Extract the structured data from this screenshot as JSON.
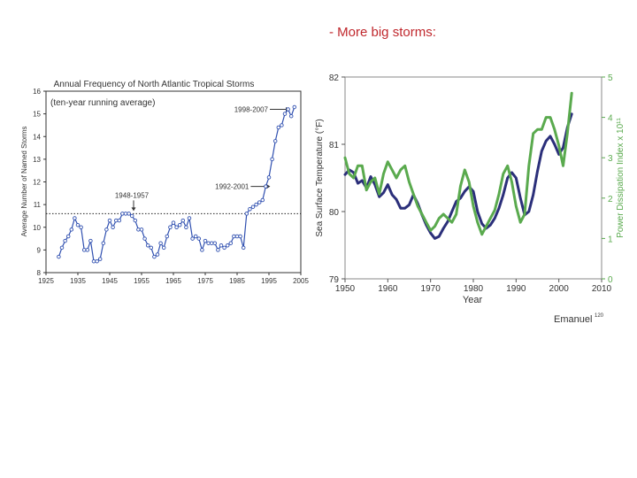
{
  "slide": {
    "title": "- More big storms:"
  },
  "chart_data": [
    {
      "type": "line",
      "title": "Annual Frequency of North Atlantic Tropical Storms",
      "subtitle": "(ten-year running average)",
      "xlabel": "",
      "ylabel": "Average Number of Named Storms",
      "xlim": [
        1925,
        2005
      ],
      "ylim": [
        8,
        16
      ],
      "x_ticks": [
        "1925",
        "1935",
        "1945",
        "1955",
        "1965",
        "1975",
        "1985",
        "1995",
        "2005"
      ],
      "y_ticks": [
        "8",
        "9",
        "10",
        "11",
        "12",
        "13",
        "14",
        "15",
        "16"
      ],
      "reference_line": {
        "y": 10.6,
        "style": "dotted"
      },
      "annotations": [
        {
          "text": "1948-1957",
          "x": 1952.5,
          "y": 10.6
        },
        {
          "text": "1992-2001",
          "x": 1996.5,
          "y": 11.8
        },
        {
          "text": "1998-2007",
          "x": 2002.5,
          "y": 15.2
        }
      ],
      "series": [
        {
          "name": "storms",
          "color": "#3050b0",
          "x": [
            1929,
            1930,
            1931,
            1932,
            1933,
            1934,
            1935,
            1936,
            1937,
            1938,
            1939,
            1940,
            1941,
            1942,
            1943,
            1944,
            1945,
            1946,
            1947,
            1948,
            1949,
            1950,
            1951,
            1952,
            1953,
            1954,
            1955,
            1956,
            1957,
            1958,
            1959,
            1960,
            1961,
            1962,
            1963,
            1964,
            1965,
            1966,
            1967,
            1968,
            1969,
            1970,
            1971,
            1972,
            1973,
            1974,
            1975,
            1976,
            1977,
            1978,
            1979,
            1980,
            1981,
            1982,
            1983,
            1984,
            1985,
            1986,
            1987,
            1988,
            1989,
            1990,
            1991,
            1992,
            1993,
            1994,
            1995,
            1996,
            1997,
            1998,
            1999,
            2000,
            2001,
            2002,
            2003
          ],
          "values": [
            8.7,
            9.1,
            9.4,
            9.6,
            9.9,
            10.4,
            10.1,
            10.0,
            9.0,
            9.0,
            9.4,
            8.5,
            8.5,
            8.6,
            9.3,
            9.9,
            10.3,
            10.0,
            10.3,
            10.3,
            10.6,
            10.6,
            10.6,
            10.5,
            10.3,
            9.9,
            9.9,
            9.5,
            9.2,
            9.1,
            8.7,
            8.8,
            9.3,
            9.1,
            9.6,
            10.0,
            10.2,
            10.0,
            10.1,
            10.3,
            10.0,
            10.4,
            9.5,
            9.6,
            9.5,
            9.0,
            9.4,
            9.3,
            9.3,
            9.3,
            9.0,
            9.2,
            9.1,
            9.2,
            9.3,
            9.6,
            9.6,
            9.6,
            9.1,
            10.6,
            10.8,
            10.9,
            11.0,
            11.1,
            11.2,
            11.8,
            12.2,
            13.0,
            13.8,
            14.4,
            14.5,
            15.0,
            15.2,
            14.9,
            15.3
          ]
        }
      ]
    },
    {
      "type": "line",
      "title": "",
      "xlabel": "Year",
      "ylabel": "Sea Surface Temperature (°F)",
      "ylabel_right": "Power Dissipation Index x 10¹¹",
      "xlim": [
        1950,
        2010
      ],
      "ylim": [
        79,
        82
      ],
      "ylim_right": [
        0,
        5
      ],
      "x_ticks": [
        "1950",
        "1960",
        "1970",
        "1980",
        "1990",
        "2000",
        "2010"
      ],
      "y_ticks": [
        "79",
        "80",
        "81",
        "82"
      ],
      "y_ticks_right": [
        "0",
        "1",
        "2",
        "3",
        "4",
        "5"
      ],
      "credit": "Emanuel",
      "credit_ref": "120",
      "series": [
        {
          "name": "Sea Surface Temperature",
          "axis": "left",
          "color": "#2b2f7a",
          "x": [
            1950,
            1951,
            1952,
            1953,
            1954,
            1955,
            1956,
            1957,
            1958,
            1959,
            1960,
            1961,
            1962,
            1963,
            1964,
            1965,
            1966,
            1967,
            1968,
            1969,
            1970,
            1971,
            1972,
            1973,
            1974,
            1975,
            1976,
            1977,
            1978,
            1979,
            1980,
            1981,
            1982,
            1983,
            1984,
            1985,
            1986,
            1987,
            1988,
            1989,
            1990,
            1991,
            1992,
            1993,
            1994,
            1995,
            1996,
            1997,
            1998,
            1999,
            2000,
            2001,
            2002,
            2003
          ],
          "values": [
            80.55,
            80.62,
            80.58,
            80.42,
            80.46,
            80.35,
            80.52,
            80.4,
            80.22,
            80.28,
            80.4,
            80.25,
            80.18,
            80.05,
            80.05,
            80.1,
            80.25,
            80.12,
            79.95,
            79.8,
            79.68,
            79.6,
            79.63,
            79.75,
            79.85,
            80.0,
            80.15,
            80.2,
            80.3,
            80.37,
            80.3,
            80.0,
            79.82,
            79.75,
            79.8,
            79.9,
            80.05,
            80.25,
            80.5,
            80.58,
            80.5,
            80.2,
            79.95,
            80.0,
            80.25,
            80.6,
            80.9,
            81.05,
            81.12,
            81.0,
            80.85,
            80.95,
            81.25,
            81.45
          ]
        },
        {
          "name": "Power Dissipation Index",
          "axis": "right",
          "color": "#5aaa4e",
          "x": [
            1950,
            1951,
            1952,
            1953,
            1954,
            1955,
            1956,
            1957,
            1958,
            1959,
            1960,
            1961,
            1962,
            1963,
            1964,
            1965,
            1966,
            1967,
            1968,
            1969,
            1970,
            1971,
            1972,
            1973,
            1974,
            1975,
            1976,
            1977,
            1978,
            1979,
            1980,
            1981,
            1982,
            1983,
            1984,
            1985,
            1986,
            1987,
            1988,
            1989,
            1990,
            1991,
            1992,
            1993,
            1994,
            1995,
            1996,
            1997,
            1998,
            1999,
            2000,
            2001,
            2002,
            2003
          ],
          "values": [
            3.0,
            2.6,
            2.5,
            2.8,
            2.8,
            2.2,
            2.4,
            2.5,
            2.1,
            2.6,
            2.9,
            2.7,
            2.5,
            2.7,
            2.8,
            2.4,
            2.1,
            1.8,
            1.6,
            1.4,
            1.2,
            1.3,
            1.5,
            1.6,
            1.5,
            1.4,
            1.6,
            2.3,
            2.7,
            2.4,
            1.8,
            1.4,
            1.1,
            1.3,
            1.5,
            1.7,
            2.1,
            2.6,
            2.8,
            2.4,
            1.8,
            1.4,
            1.6,
            2.8,
            3.6,
            3.7,
            3.7,
            4.0,
            4.0,
            3.7,
            3.3,
            2.8,
            3.6,
            4.6
          ]
        }
      ]
    }
  ]
}
